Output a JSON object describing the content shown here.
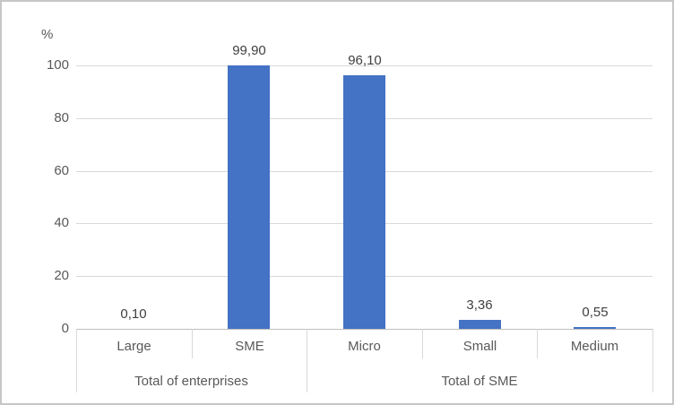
{
  "chart_data": {
    "type": "bar",
    "title": "",
    "ylabel": "%",
    "xlabel": "",
    "categories": [
      "Large",
      "SME",
      "Micro",
      "Small",
      "Medium"
    ],
    "values": [
      0.1,
      99.9,
      96.1,
      3.36,
      0.55
    ],
    "data_labels": [
      "0,10",
      "99,90",
      "96,10",
      "3,36",
      "0,55"
    ],
    "group_axis": [
      {
        "label": "Total of enterprises",
        "span": 2
      },
      {
        "label": "Total of SME",
        "span": 3
      }
    ],
    "y_ticks": [
      0,
      20,
      40,
      60,
      80,
      100
    ],
    "ylim": [
      0,
      100
    ],
    "grid": true,
    "legend_position": "none",
    "colors": {
      "bar": "#4472C4",
      "gridline": "#D9D9D9",
      "axis_line": "#BFBFBF",
      "separator_line": "#D9D9D9",
      "axis_text": "#595959",
      "data_label_text": "#404040",
      "frame_border": "#C6C6C6",
      "background": "#FFFFFF"
    }
  }
}
